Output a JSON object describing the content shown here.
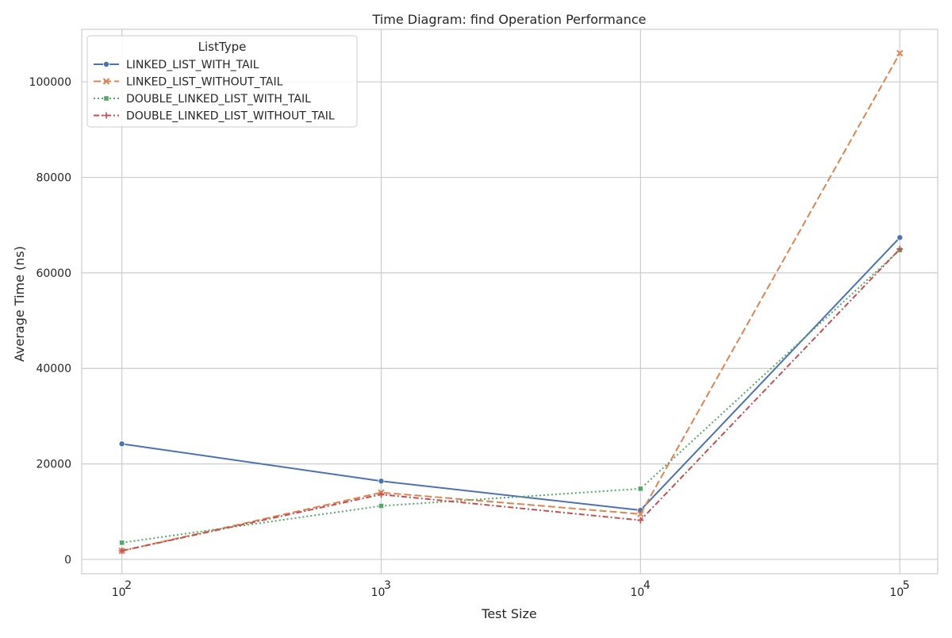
{
  "chart_data": {
    "type": "line",
    "title": "Time Diagram: find Operation Performance",
    "xlabel": "Test Size",
    "ylabel": "Average Time (ns)",
    "xscale": "log",
    "x": [
      100,
      1000,
      10000,
      100000
    ],
    "xlim": [
      70,
      140000
    ],
    "ylim": [
      -3000,
      111000
    ],
    "yticks": [
      0,
      20000,
      40000,
      60000,
      80000,
      100000
    ],
    "xtick_labels": [
      {
        "base": "10",
        "exp": "2"
      },
      {
        "base": "10",
        "exp": "3"
      },
      {
        "base": "10",
        "exp": "4"
      },
      {
        "base": "10",
        "exp": "5"
      }
    ],
    "grid": true,
    "legend": {
      "title": "ListType",
      "placement": "top-left"
    },
    "series": [
      {
        "name": "LINKED_LIST_WITH_TAIL",
        "color": "#4c72b0",
        "marker": "circle",
        "dash": "solid",
        "values": [
          24200,
          16400,
          10300,
          67400
        ]
      },
      {
        "name": "LINKED_LIST_WITHOUT_TAIL",
        "color": "#dd8452",
        "marker": "x",
        "dash": "dashed",
        "values": [
          1800,
          14000,
          9500,
          106000
        ]
      },
      {
        "name": "DOUBLE_LINKED_LIST_WITH_TAIL",
        "color": "#55a868",
        "marker": "square",
        "dash": "dotted",
        "values": [
          3500,
          11200,
          14800,
          64800
        ]
      },
      {
        "name": "DOUBLE_LINKED_LIST_WITHOUT_TAIL",
        "color": "#c44e52",
        "marker": "plus",
        "dash": "dashdot",
        "values": [
          1800,
          13600,
          8200,
          65000
        ]
      }
    ]
  }
}
